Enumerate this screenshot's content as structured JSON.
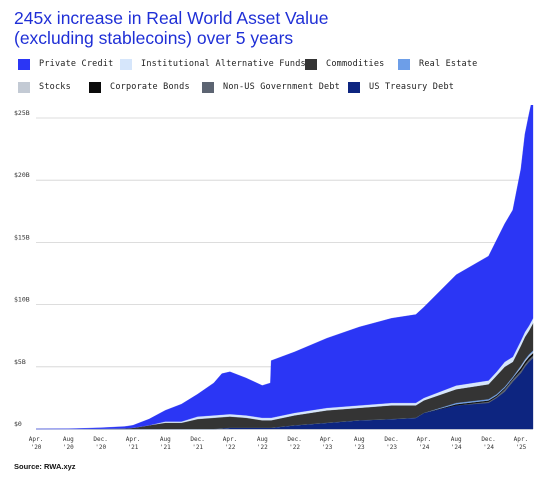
{
  "title_line1": "245x increase in Real World Asset Value",
  "title_line2": "(excluding stablecoins) over 5 years",
  "source": "Source: RWA.xyz",
  "legend": [
    {
      "label": "Private Credit",
      "color": "#2b36f5"
    },
    {
      "label": "Institutional Alternative Funds",
      "color": "#d6e6fb"
    },
    {
      "label": "Commodities",
      "color": "#343434"
    },
    {
      "label": "Real Estate",
      "color": "#6d9ee8"
    },
    {
      "label": "Stocks",
      "color": "#c3cad4"
    },
    {
      "label": "Corporate Bonds",
      "color": "#0b0b0b"
    },
    {
      "label": "Non-US Government Debt",
      "color": "#5c6472"
    },
    {
      "label": "US Treasury Debt",
      "color": "#0d2580"
    }
  ],
  "chart_data": {
    "type": "area",
    "stacked": true,
    "x_unit": "months since Apr 2020",
    "x_ticks": [
      {
        "label": "Apr.",
        "year": "'20",
        "x": 0
      },
      {
        "label": "Aug",
        "year": "'20",
        "x": 4
      },
      {
        "label": "Dec.",
        "year": "'20",
        "x": 8
      },
      {
        "label": "Apr.",
        "year": "'21",
        "x": 12
      },
      {
        "label": "Aug",
        "year": "'21",
        "x": 16
      },
      {
        "label": "Dec.",
        "year": "'21",
        "x": 20
      },
      {
        "label": "Apr.",
        "year": "'22",
        "x": 24
      },
      {
        "label": "Aug",
        "year": "'22",
        "x": 28
      },
      {
        "label": "Dec.",
        "year": "'22",
        "x": 32
      },
      {
        "label": "Apr.",
        "year": "'23",
        "x": 36
      },
      {
        "label": "Aug",
        "year": "'23",
        "x": 40
      },
      {
        "label": "Dec.",
        "year": "'23",
        "x": 44
      },
      {
        "label": "Apr.",
        "year": "'24",
        "x": 48
      },
      {
        "label": "Aug",
        "year": "'24",
        "x": 52
      },
      {
        "label": "Dec.",
        "year": "'24",
        "x": 56
      },
      {
        "label": "Apr.",
        "year": "'25",
        "x": 60
      }
    ],
    "y_ticks": [
      {
        "label": "$0",
        "v": 0
      },
      {
        "label": "$5B",
        "v": 5
      },
      {
        "label": "$10B",
        "v": 10
      },
      {
        "label": "$15B",
        "v": 15
      },
      {
        "label": "$20B",
        "v": 20
      },
      {
        "label": "$25B",
        "v": 25
      }
    ],
    "ylim": [
      0,
      25
    ],
    "xlim": [
      0,
      61.5
    ],
    "grid": true,
    "x": [
      0,
      4,
      8,
      11,
      12,
      14,
      16,
      18,
      20,
      22,
      23,
      24,
      26,
      28,
      29,
      29.1,
      32,
      36,
      40,
      44,
      47,
      48,
      52,
      56,
      57,
      58,
      59,
      60,
      60.5,
      61,
      61.5
    ],
    "series": [
      {
        "name": "US Treasury Debt",
        "color": "#0d2580",
        "values": [
          0,
          0,
          0,
          0,
          0,
          0,
          0,
          0,
          0,
          0,
          0.05,
          0.1,
          0.1,
          0.1,
          0.1,
          0.1,
          0.3,
          0.5,
          0.7,
          0.8,
          0.9,
          1.3,
          1.9,
          2.1,
          2.5,
          3.0,
          3.8,
          4.5,
          5.0,
          5.4,
          5.7
        ]
      },
      {
        "name": "Non-US Government Debt",
        "color": "#5c6472",
        "values": [
          0,
          0,
          0,
          0,
          0,
          0,
          0,
          0,
          0,
          0,
          0,
          0,
          0,
          0,
          0,
          0,
          0,
          0,
          0,
          0,
          0,
          0,
          0,
          0.1,
          0.1,
          0.2,
          0.2,
          0.2,
          0.2,
          0.2,
          0.2
        ]
      },
      {
        "name": "Corporate Bonds",
        "color": "#0b0b0b",
        "values": [
          0,
          0,
          0,
          0,
          0,
          0,
          0,
          0,
          0,
          0,
          0,
          0,
          0,
          0,
          0,
          0,
          0,
          0,
          0,
          0,
          0,
          0,
          0.1,
          0.1,
          0.1,
          0.1,
          0.1,
          0.2,
          0.2,
          0.2,
          0.2
        ]
      },
      {
        "name": "Stocks",
        "color": "#c3cad4",
        "values": [
          0,
          0,
          0,
          0,
          0,
          0,
          0,
          0,
          0,
          0,
          0,
          0,
          0,
          0,
          0,
          0,
          0,
          0,
          0,
          0,
          0,
          0,
          0,
          0,
          0,
          0,
          0,
          0.1,
          0.1,
          0.1,
          0.1
        ]
      },
      {
        "name": "Real Estate",
        "color": "#6d9ee8",
        "values": [
          0,
          0,
          0,
          0,
          0,
          0,
          0,
          0,
          0,
          0,
          0,
          0,
          0,
          0,
          0,
          0,
          0,
          0,
          0,
          0,
          0,
          0,
          0.1,
          0.1,
          0.1,
          0.1,
          0.1,
          0.1,
          0.1,
          0.1,
          0.1
        ]
      },
      {
        "name": "Commodities",
        "color": "#343434",
        "values": [
          0,
          0,
          0.02,
          0.05,
          0.1,
          0.3,
          0.5,
          0.5,
          0.8,
          0.9,
          0.9,
          0.9,
          0.8,
          0.6,
          0.6,
          0.6,
          0.8,
          1.0,
          1.0,
          1.1,
          1.0,
          1.0,
          1.1,
          1.2,
          1.5,
          1.6,
          1.2,
          1.6,
          1.8,
          1.9,
          2.2
        ]
      },
      {
        "name": "Institutional Alternative Funds",
        "color": "#d6e6fb",
        "values": [
          0,
          0,
          0,
          0,
          0,
          0,
          0.1,
          0.1,
          0.2,
          0.2,
          0.2,
          0.2,
          0.2,
          0.2,
          0.2,
          0.2,
          0.2,
          0.2,
          0.2,
          0.2,
          0.2,
          0.2,
          0.3,
          0.3,
          0.3,
          0.4,
          0.4,
          0.4,
          0.4,
          0.4,
          0.4
        ]
      },
      {
        "name": "Private Credit",
        "color": "#2b36f5",
        "values": [
          0,
          0.02,
          0.08,
          0.15,
          0.2,
          0.5,
          0.9,
          1.4,
          1.8,
          2.6,
          3.3,
          3.4,
          3.0,
          2.6,
          2.8,
          4.6,
          4.9,
          5.6,
          6.3,
          6.8,
          7.1,
          7.3,
          8.9,
          10.0,
          10.6,
          11.1,
          11.8,
          13.8,
          15.9,
          17.0,
          17.9
        ]
      }
    ]
  }
}
